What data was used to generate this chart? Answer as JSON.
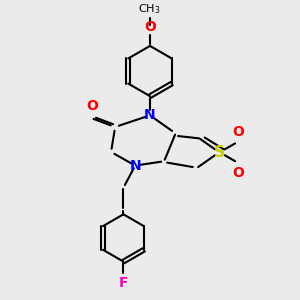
{
  "background_color": "#ebebeb",
  "bond_color": "#000000",
  "n_color": "#0000ff",
  "o_color": "#ff0000",
  "s_color": "#cccc00",
  "f_color": "#ff00cc",
  "figsize": [
    3.0,
    3.0
  ],
  "dpi": 100,
  "xlim": [
    0,
    10
  ],
  "ylim": [
    0,
    10
  ]
}
